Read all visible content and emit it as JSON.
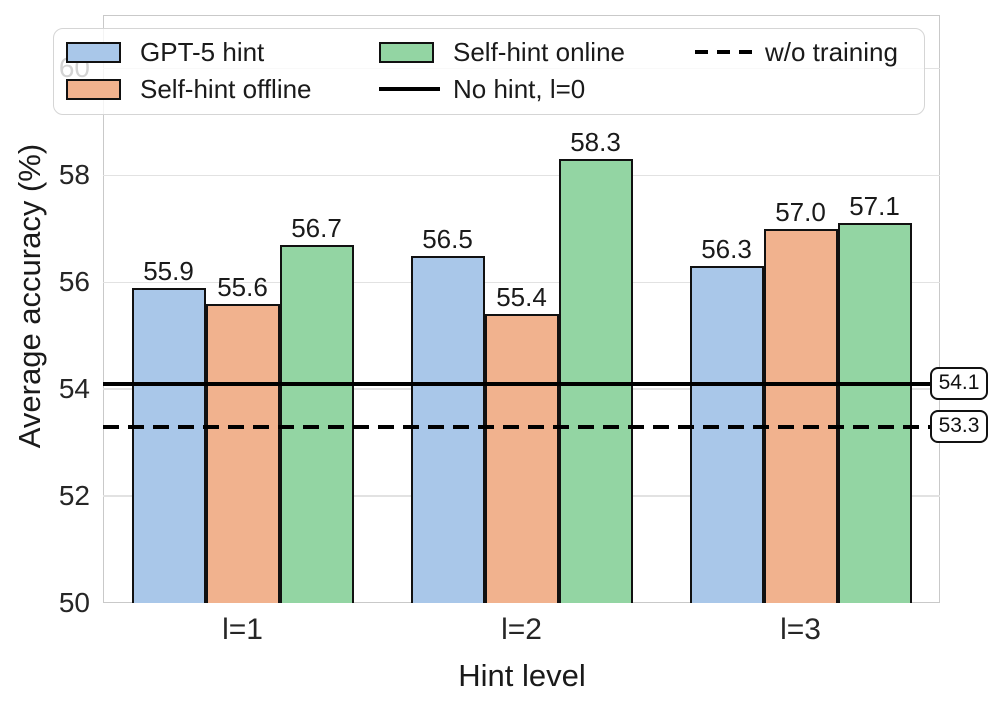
{
  "chart_data": {
    "type": "bar",
    "xlabel": "Hint level",
    "ylabel": "Average accuracy (%)",
    "ylim": [
      50,
      61
    ],
    "yticks": [
      50,
      52,
      54,
      56,
      58,
      60
    ],
    "grid": "horizontal",
    "categories": [
      "l=1",
      "l=2",
      "l=3"
    ],
    "series": [
      {
        "name": "GPT-5 hint",
        "color": "#a9c7e9",
        "values": [
          55.9,
          56.5,
          56.3
        ]
      },
      {
        "name": "Self-hint offline",
        "color": "#f1b28e",
        "values": [
          55.6,
          55.4,
          57.0
        ]
      },
      {
        "name": "Self-hint online",
        "color": "#93d5a3",
        "values": [
          56.7,
          58.3,
          57.1
        ]
      }
    ],
    "reference_lines": [
      {
        "label": "No hint, l=0",
        "value": 54.1,
        "style": "solid",
        "annotation": "54.1"
      },
      {
        "label": "w/o training",
        "value": 53.3,
        "style": "dashed",
        "annotation": "53.3"
      }
    ],
    "legend": {
      "position": "upper center, inside axes, 3 columns",
      "items": [
        {
          "label": "GPT-5 hint",
          "swatch": "patch",
          "color": "#a9c7e9"
        },
        {
          "label": "Self-hint offline",
          "swatch": "patch",
          "color": "#f1b28e"
        },
        {
          "label": "Self-hint online",
          "swatch": "patch",
          "color": "#93d5a3"
        },
        {
          "label": "No hint, l=0",
          "swatch": "solid-line",
          "color": "#000000"
        },
        {
          "label": "w/o training",
          "swatch": "dashed-line",
          "color": "#000000"
        }
      ]
    },
    "bar_edge_color": "#111111",
    "grid_color": "#e2e2e2",
    "spine_color": "#c9c9c9"
  }
}
